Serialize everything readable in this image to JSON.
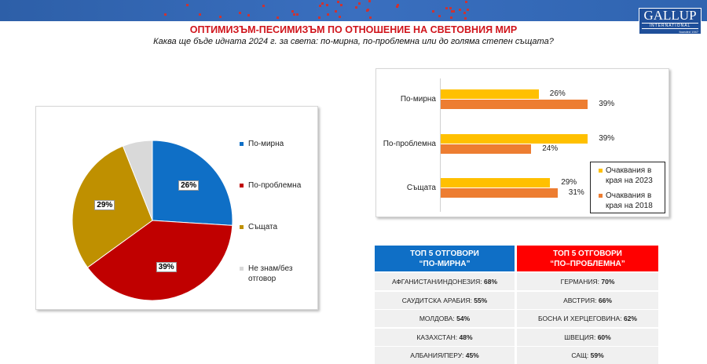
{
  "header": {
    "logo": "GALLUP INTERNATIONAL",
    "logo_main": "GALLUP",
    "logo_sub": "INTERNATIONAL",
    "logo_founded": "founded 1947",
    "title": "ОПТИМИЗЪМ-ПЕСИМИЗЪМ ПО ОТНОШЕНИЕ НА СВЕТОВНИЯ МИР",
    "subtitle": "Каква ще бъде идната 2024 г. за света: по-мирна, по-проблемна или до голяма степен същата?"
  },
  "chart_data": [
    {
      "type": "pie",
      "slices": [
        {
          "label": "По-мирна",
          "value": 26,
          "display": "26%",
          "color": "#0f6fc6"
        },
        {
          "label": "По-проблемна",
          "value": 39,
          "display": "39%",
          "color": "#c00000"
        },
        {
          "label": "Същата",
          "value": 29,
          "display": "29%",
          "color": "#bf9000"
        },
        {
          "label": "Не знам/без отговор",
          "value": 6,
          "display": "",
          "color": "#d9d9d9"
        }
      ],
      "legend": "right"
    },
    {
      "type": "bar",
      "orientation": "horizontal",
      "categories": [
        "По-мирна",
        "По-проблемна",
        "Същата"
      ],
      "series": [
        {
          "name": "Очаквания в края на 2023",
          "values": [
            26,
            39,
            29
          ],
          "color": "#ffc000"
        },
        {
          "name": "Очаквания в края на 2018",
          "values": [
            39,
            24,
            31
          ],
          "color": "#ed7d31"
        }
      ],
      "legend": "bottom-right"
    }
  ],
  "table": {
    "headers": [
      {
        "line1": "ТОП 5 ОТГОВОРИ",
        "line2": "“ПО-МИРНА”",
        "color": "#0f6fc6"
      },
      {
        "line1": "ТОП 5 ОТГОВОРИ",
        "line2": "“ПО–ПРОБЛЕМНА”",
        "color": "#ff0000"
      }
    ],
    "left": [
      {
        "country": "АФГАНИСТАН/ИНДОНЕЗИЯ:",
        "value": "68%"
      },
      {
        "country": "САУДИТСКА АРАБИЯ:",
        "value": "55%"
      },
      {
        "country": "МОЛДОВА:",
        "value": "54%"
      },
      {
        "country": "КАЗАХСТАН:",
        "value": "48%"
      },
      {
        "country": "АЛБАНИЯ/ПЕРУ:",
        "value": "45%"
      }
    ],
    "right": [
      {
        "country": "ГЕРМАНИЯ:",
        "value": "70%"
      },
      {
        "country": "АВСТРИЯ:",
        "value": "66%"
      },
      {
        "country": "БОСНА И ХЕРЦЕГОВИНА:",
        "value": "62%"
      },
      {
        "country": "ШВЕЦИЯ:",
        "value": "60%"
      },
      {
        "country": "САЩ:",
        "value": "59%"
      }
    ]
  }
}
